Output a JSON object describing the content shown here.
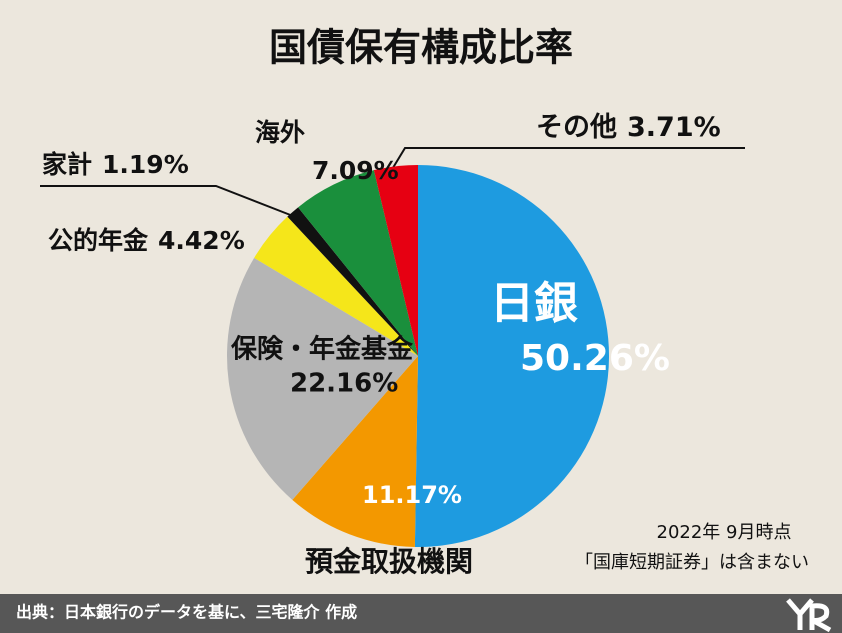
{
  "chart_data": {
    "type": "pie",
    "title": "国債保有構成比率",
    "categories": [
      "日銀",
      "預金取扱機関",
      "保険・年金基金",
      "公的年金",
      "家計",
      "海外",
      "その他"
    ],
    "values": [
      50.26,
      11.17,
      22.16,
      4.42,
      1.19,
      7.09,
      3.71
    ],
    "value_labels": [
      "50.26%",
      "11.17%",
      "22.16%",
      "4.42%",
      "1.19%",
      "7.09%",
      "3.71%"
    ],
    "colors": [
      "#1e9be0",
      "#f39800",
      "#b5b5b5",
      "#f5e61a",
      "#111111",
      "#1a8f3c",
      "#e60012"
    ],
    "notes": [
      "2022年 9月時点",
      "「国庫短期証券」は含まない"
    ],
    "source": "出典：日本銀行のデータを基に、三宅隆介 作成"
  }
}
